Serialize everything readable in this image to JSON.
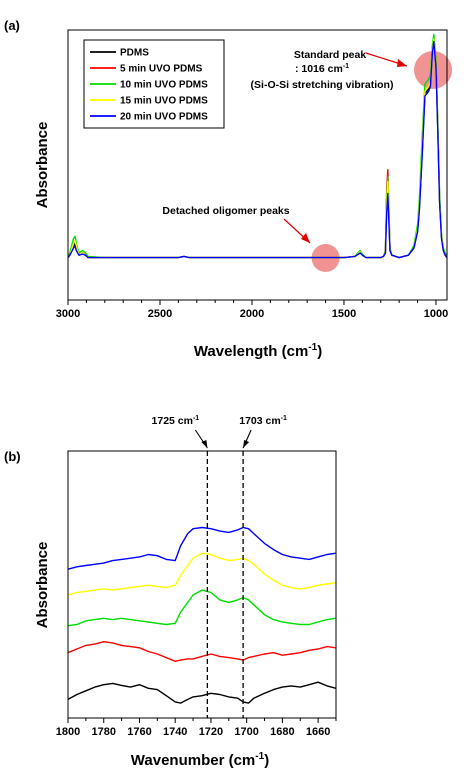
{
  "figure": {
    "panel_a_label": "(a)",
    "panel_b_label": "(b)"
  },
  "chart_data": [
    {
      "type": "line",
      "panel": "(a)",
      "xlabel": "Wavelength (cm",
      "xlabel_sup": "-1",
      "xlabel_end": ")",
      "ylabel": "Absorbance",
      "xlim": [
        3000,
        940
      ],
      "ylim": [
        0,
        1
      ],
      "x_reversed": true,
      "xticks": [
        3000,
        2500,
        2000,
        1500,
        1000
      ],
      "legend_position": "top-left",
      "series": [
        {
          "name": "PDMS",
          "color": "#000000",
          "x": [
            3000,
            2990,
            2970,
            2962,
            2955,
            2940,
            2920,
            2905,
            2890,
            2800,
            2400,
            2370,
            2340,
            2300,
            2200,
            2000,
            1800,
            1600,
            1500,
            1440,
            1430,
            1412,
            1400,
            1380,
            1330,
            1300,
            1285,
            1275,
            1268,
            1262,
            1256,
            1250,
            1240,
            1200,
            1150,
            1120,
            1100,
            1090,
            1075,
            1060,
            1040,
            1030,
            1020,
            1012,
            1000,
            990,
            980,
            970,
            960,
            950,
            940
          ],
          "y": [
            0.01,
            0.02,
            0.06,
            0.07,
            0.05,
            0.02,
            0.03,
            0.02,
            0.01,
            0.01,
            0.01,
            0.015,
            0.01,
            0.01,
            0.01,
            0.01,
            0.01,
            0.01,
            0.01,
            0.015,
            0.02,
            0.03,
            0.02,
            0.01,
            0.01,
            0.01,
            0.015,
            0.03,
            0.22,
            0.31,
            0.18,
            0.04,
            0.02,
            0.01,
            0.02,
            0.05,
            0.12,
            0.22,
            0.45,
            0.7,
            0.72,
            0.74,
            0.88,
            0.93,
            0.82,
            0.55,
            0.25,
            0.1,
            0.04,
            0.02,
            0.01
          ]
        },
        {
          "name": "5 min UVO PDMS",
          "color": "#ff0000",
          "x": [
            3000,
            2990,
            2970,
            2962,
            2955,
            2940,
            2920,
            2905,
            2890,
            2800,
            2400,
            2370,
            2340,
            2300,
            2200,
            2000,
            1800,
            1600,
            1500,
            1440,
            1430,
            1412,
            1400,
            1380,
            1330,
            1300,
            1285,
            1275,
            1268,
            1262,
            1256,
            1250,
            1240,
            1200,
            1150,
            1120,
            1100,
            1090,
            1075,
            1060,
            1040,
            1030,
            1020,
            1012,
            1000,
            990,
            980,
            970,
            960,
            950,
            940
          ],
          "y": [
            0.01,
            0.02,
            0.07,
            0.08,
            0.06,
            0.02,
            0.03,
            0.02,
            0.01,
            0.01,
            0.01,
            0.015,
            0.01,
            0.01,
            0.01,
            0.01,
            0.01,
            0.01,
            0.01,
            0.015,
            0.02,
            0.035,
            0.02,
            0.01,
            0.01,
            0.01,
            0.015,
            0.04,
            0.3,
            0.38,
            0.22,
            0.05,
            0.02,
            0.01,
            0.02,
            0.05,
            0.13,
            0.23,
            0.47,
            0.71,
            0.73,
            0.75,
            0.89,
            0.94,
            0.83,
            0.56,
            0.26,
            0.1,
            0.04,
            0.02,
            0.01
          ]
        },
        {
          "name": "10 min UVO PDMS",
          "color": "#00dd00",
          "x": [
            3000,
            2990,
            2970,
            2962,
            2955,
            2940,
            2920,
            2905,
            2890,
            2800,
            2400,
            2370,
            2340,
            2300,
            2200,
            2000,
            1800,
            1600,
            1500,
            1440,
            1430,
            1412,
            1400,
            1380,
            1330,
            1300,
            1285,
            1275,
            1268,
            1262,
            1256,
            1250,
            1240,
            1200,
            1150,
            1120,
            1100,
            1090,
            1075,
            1060,
            1040,
            1030,
            1020,
            1012,
            1000,
            990,
            980,
            970,
            960,
            950,
            940
          ],
          "y": [
            0.01,
            0.03,
            0.09,
            0.1,
            0.07,
            0.03,
            0.04,
            0.03,
            0.015,
            0.01,
            0.01,
            0.015,
            0.01,
            0.01,
            0.01,
            0.01,
            0.01,
            0.01,
            0.01,
            0.015,
            0.025,
            0.04,
            0.025,
            0.01,
            0.01,
            0.01,
            0.015,
            0.04,
            0.27,
            0.35,
            0.2,
            0.05,
            0.02,
            0.01,
            0.02,
            0.06,
            0.15,
            0.26,
            0.52,
            0.74,
            0.76,
            0.78,
            0.9,
            0.95,
            0.84,
            0.58,
            0.28,
            0.11,
            0.05,
            0.03,
            0.02
          ]
        },
        {
          "name": "15 min UVO PDMS",
          "color": "#ffff00",
          "x": [
            3000,
            2990,
            2970,
            2962,
            2955,
            2940,
            2920,
            2905,
            2890,
            2800,
            2400,
            2370,
            2340,
            2300,
            2200,
            2000,
            1800,
            1600,
            1500,
            1440,
            1430,
            1412,
            1400,
            1380,
            1330,
            1300,
            1285,
            1275,
            1268,
            1262,
            1256,
            1250,
            1240,
            1200,
            1150,
            1120,
            1100,
            1090,
            1075,
            1060,
            1040,
            1030,
            1020,
            1012,
            1000,
            990,
            980,
            970,
            960,
            950,
            940
          ],
          "y": [
            0.01,
            0.02,
            0.07,
            0.08,
            0.06,
            0.02,
            0.03,
            0.02,
            0.01,
            0.01,
            0.01,
            0.015,
            0.01,
            0.01,
            0.01,
            0.01,
            0.01,
            0.01,
            0.01,
            0.015,
            0.02,
            0.035,
            0.02,
            0.01,
            0.01,
            0.01,
            0.015,
            0.035,
            0.24,
            0.33,
            0.19,
            0.045,
            0.02,
            0.01,
            0.02,
            0.05,
            0.13,
            0.23,
            0.47,
            0.71,
            0.73,
            0.75,
            0.88,
            0.93,
            0.82,
            0.55,
            0.25,
            0.1,
            0.04,
            0.02,
            0.01
          ]
        },
        {
          "name": "20 min UVO PDMS",
          "color": "#0000ff",
          "x": [
            3000,
            2990,
            2970,
            2962,
            2955,
            2940,
            2920,
            2905,
            2890,
            2800,
            2400,
            2370,
            2340,
            2300,
            2200,
            2000,
            1800,
            1600,
            1500,
            1440,
            1430,
            1412,
            1400,
            1380,
            1330,
            1300,
            1285,
            1275,
            1268,
            1262,
            1256,
            1250,
            1240,
            1200,
            1150,
            1120,
            1100,
            1090,
            1075,
            1060,
            1040,
            1030,
            1020,
            1012,
            1000,
            990,
            980,
            970,
            960,
            950,
            940
          ],
          "y": [
            0.01,
            0.02,
            0.05,
            0.06,
            0.04,
            0.02,
            0.025,
            0.02,
            0.01,
            0.01,
            0.01,
            0.015,
            0.01,
            0.01,
            0.01,
            0.01,
            0.01,
            0.01,
            0.01,
            0.015,
            0.02,
            0.03,
            0.02,
            0.01,
            0.01,
            0.01,
            0.015,
            0.03,
            0.2,
            0.28,
            0.16,
            0.04,
            0.02,
            0.01,
            0.02,
            0.05,
            0.12,
            0.21,
            0.44,
            0.69,
            0.71,
            0.73,
            0.87,
            0.92,
            0.81,
            0.54,
            0.24,
            0.09,
            0.04,
            0.02,
            0.01
          ]
        }
      ],
      "annotations": {
        "standard_peak_line1": "Standard peak",
        "standard_peak_line2": ": 1016 cm",
        "standard_peak_sup": "-1",
        "standard_peak_line3": "(Si-O-Si stretching vibration)",
        "standard_peak_x": 1016,
        "oligomer_label": "Detached oligomer peaks",
        "oligomer_x": 1600,
        "highlight_color": "#f08080"
      }
    },
    {
      "type": "line",
      "panel": "(b)",
      "xlabel": "Wavenumber (cm",
      "xlabel_sup": "-1",
      "xlabel_end": ")",
      "ylabel": "Absorbance",
      "xlim": [
        1800,
        1650
      ],
      "ylim": [
        0,
        1
      ],
      "x_reversed": true,
      "xticks": [
        1800,
        1780,
        1760,
        1740,
        1720,
        1700,
        1680,
        1660
      ],
      "markers": [
        {
          "label": "1725 cm",
          "sup": "-1",
          "x": 1722
        },
        {
          "label": "1703 cm",
          "sup": "-1",
          "x": 1702
        }
      ],
      "series": [
        {
          "name": "PDMS",
          "color": "#000000",
          "x": [
            1800,
            1795,
            1790,
            1785,
            1780,
            1775,
            1770,
            1765,
            1760,
            1755,
            1750,
            1745,
            1740,
            1737,
            1733,
            1730,
            1725,
            1720,
            1715,
            1710,
            1705,
            1702,
            1699,
            1696,
            1690,
            1685,
            1680,
            1675,
            1670,
            1665,
            1660,
            1655,
            1650
          ],
          "y": [
            0.035,
            0.055,
            0.07,
            0.085,
            0.095,
            0.1,
            0.092,
            0.085,
            0.095,
            0.08,
            0.075,
            0.05,
            0.025,
            0.02,
            0.035,
            0.045,
            0.05,
            0.06,
            0.055,
            0.045,
            0.04,
            0.025,
            0.02,
            0.04,
            0.06,
            0.075,
            0.085,
            0.09,
            0.085,
            0.095,
            0.105,
            0.09,
            0.08
          ]
        },
        {
          "name": "5 min UVO PDMS",
          "color": "#ff0000",
          "x": [
            1800,
            1795,
            1790,
            1785,
            1780,
            1775,
            1770,
            1765,
            1760,
            1755,
            1750,
            1745,
            1740,
            1737,
            1733,
            1730,
            1725,
            1720,
            1715,
            1710,
            1705,
            1702,
            1699,
            1696,
            1690,
            1685,
            1680,
            1675,
            1670,
            1665,
            1660,
            1655,
            1650
          ],
          "y": [
            0.225,
            0.24,
            0.255,
            0.26,
            0.27,
            0.265,
            0.255,
            0.25,
            0.245,
            0.23,
            0.22,
            0.205,
            0.19,
            0.195,
            0.2,
            0.2,
            0.21,
            0.22,
            0.21,
            0.205,
            0.2,
            0.195,
            0.205,
            0.21,
            0.22,
            0.225,
            0.215,
            0.22,
            0.225,
            0.235,
            0.24,
            0.25,
            0.245
          ]
        },
        {
          "name": "10 min UVO PDMS",
          "color": "#00dd00",
          "x": [
            1800,
            1795,
            1790,
            1785,
            1780,
            1775,
            1770,
            1765,
            1760,
            1755,
            1750,
            1745,
            1740,
            1737,
            1733,
            1730,
            1725,
            1720,
            1715,
            1710,
            1705,
            1702,
            1699,
            1696,
            1690,
            1685,
            1680,
            1675,
            1670,
            1665,
            1660,
            1655,
            1650
          ],
          "y": [
            0.335,
            0.34,
            0.355,
            0.36,
            0.365,
            0.36,
            0.365,
            0.36,
            0.355,
            0.35,
            0.345,
            0.34,
            0.345,
            0.39,
            0.43,
            0.46,
            0.48,
            0.47,
            0.44,
            0.43,
            0.44,
            0.45,
            0.44,
            0.42,
            0.38,
            0.36,
            0.35,
            0.345,
            0.34,
            0.34,
            0.35,
            0.36,
            0.365
          ]
        },
        {
          "name": "15 min UVO PDMS",
          "color": "#ffff00",
          "x": [
            1800,
            1795,
            1790,
            1785,
            1780,
            1775,
            1770,
            1765,
            1760,
            1755,
            1750,
            1745,
            1740,
            1737,
            1733,
            1730,
            1725,
            1720,
            1715,
            1710,
            1705,
            1702,
            1699,
            1696,
            1690,
            1685,
            1680,
            1675,
            1670,
            1665,
            1660,
            1655,
            1650
          ],
          "y": [
            0.46,
            0.47,
            0.475,
            0.48,
            0.485,
            0.48,
            0.485,
            0.49,
            0.495,
            0.5,
            0.495,
            0.49,
            0.5,
            0.54,
            0.58,
            0.61,
            0.63,
            0.625,
            0.61,
            0.6,
            0.605,
            0.61,
            0.6,
            0.585,
            0.545,
            0.52,
            0.5,
            0.49,
            0.485,
            0.49,
            0.5,
            0.505,
            0.51
          ]
        },
        {
          "name": "20 min UVO PDMS",
          "color": "#0000ff",
          "x": [
            1800,
            1795,
            1790,
            1785,
            1780,
            1775,
            1770,
            1765,
            1760,
            1755,
            1750,
            1745,
            1740,
            1737,
            1733,
            1730,
            1725,
            1720,
            1715,
            1710,
            1705,
            1702,
            1699,
            1696,
            1690,
            1685,
            1680,
            1675,
            1670,
            1665,
            1660,
            1655,
            1650
          ],
          "y": [
            0.565,
            0.575,
            0.58,
            0.585,
            0.59,
            0.6,
            0.605,
            0.61,
            0.615,
            0.625,
            0.62,
            0.605,
            0.6,
            0.66,
            0.71,
            0.73,
            0.735,
            0.73,
            0.72,
            0.715,
            0.725,
            0.735,
            0.73,
            0.71,
            0.67,
            0.645,
            0.625,
            0.615,
            0.61,
            0.605,
            0.615,
            0.625,
            0.63
          ]
        }
      ]
    }
  ]
}
